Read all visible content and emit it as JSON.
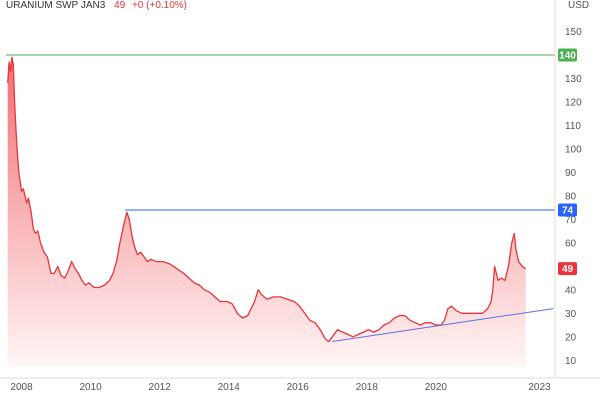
{
  "header": {
    "symbol": "URANIUM SWP JAN3",
    "last": "49",
    "change": "+0 (+0.10%)"
  },
  "colors": {
    "price_line": "#e8343a",
    "area_top": "#f26d73",
    "area_bottom": "#fff5f5",
    "resistance_high": "#4caf50",
    "resistance_mid": "#2962ff",
    "trendline": "#5b6ee8",
    "axis_bg": "#ffffff"
  },
  "chart_data": {
    "type": "area",
    "title": "URANIUM SWP JAN3",
    "xlabel": "",
    "ylabel": "",
    "currency": "USD",
    "xlim": [
      2007.55,
      2023.45
    ],
    "ylim": [
      5,
      160
    ],
    "x_ticks": [
      {
        "value": 2008,
        "label": "2008"
      },
      {
        "value": 2010,
        "label": "2010"
      },
      {
        "value": 2012,
        "label": "2012"
      },
      {
        "value": 2014,
        "label": "2014"
      },
      {
        "value": 2016,
        "label": "2016"
      },
      {
        "value": 2018,
        "label": "2018"
      },
      {
        "value": 2020,
        "label": "2020"
      },
      {
        "value": 2023,
        "label": "2023"
      }
    ],
    "y_ticks": [
      10,
      20,
      30,
      40,
      50,
      60,
      70,
      80,
      90,
      100,
      110,
      120,
      130,
      150
    ],
    "grid": false,
    "series": [
      {
        "points": [
          [
            2007.6,
            128
          ],
          [
            2007.64,
            137
          ],
          [
            2007.68,
            133
          ],
          [
            2007.72,
            139
          ],
          [
            2007.76,
            136
          ],
          [
            2007.8,
            120
          ],
          [
            2007.84,
            108
          ],
          [
            2007.88,
            98
          ],
          [
            2007.92,
            90
          ],
          [
            2007.96,
            86
          ],
          [
            2008.0,
            82
          ],
          [
            2008.05,
            83
          ],
          [
            2008.1,
            80
          ],
          [
            2008.15,
            77
          ],
          [
            2008.2,
            79
          ],
          [
            2008.28,
            73
          ],
          [
            2008.34,
            66
          ],
          [
            2008.4,
            64
          ],
          [
            2008.47,
            65
          ],
          [
            2008.55,
            60
          ],
          [
            2008.65,
            56
          ],
          [
            2008.75,
            54
          ],
          [
            2008.85,
            47
          ],
          [
            2008.95,
            47
          ],
          [
            2009.05,
            50
          ],
          [
            2009.15,
            46
          ],
          [
            2009.25,
            45
          ],
          [
            2009.35,
            48
          ],
          [
            2009.45,
            52
          ],
          [
            2009.55,
            49
          ],
          [
            2009.65,
            47
          ],
          [
            2009.75,
            44
          ],
          [
            2009.85,
            42
          ],
          [
            2009.95,
            43
          ],
          [
            2010.1,
            41
          ],
          [
            2010.25,
            41
          ],
          [
            2010.4,
            42
          ],
          [
            2010.55,
            44
          ],
          [
            2010.65,
            47
          ],
          [
            2010.75,
            52
          ],
          [
            2010.85,
            60
          ],
          [
            2010.95,
            67
          ],
          [
            2011.05,
            73
          ],
          [
            2011.12,
            70
          ],
          [
            2011.2,
            63
          ],
          [
            2011.28,
            58
          ],
          [
            2011.36,
            55
          ],
          [
            2011.45,
            56
          ],
          [
            2011.55,
            54
          ],
          [
            2011.65,
            52
          ],
          [
            2011.75,
            53
          ],
          [
            2011.9,
            52
          ],
          [
            2012.1,
            52
          ],
          [
            2012.3,
            51
          ],
          [
            2012.5,
            49
          ],
          [
            2012.7,
            47
          ],
          [
            2012.85,
            45
          ],
          [
            2013.0,
            43
          ],
          [
            2013.15,
            42
          ],
          [
            2013.3,
            40
          ],
          [
            2013.45,
            39
          ],
          [
            2013.6,
            37
          ],
          [
            2013.75,
            35
          ],
          [
            2013.95,
            35
          ],
          [
            2014.1,
            34
          ],
          [
            2014.25,
            30
          ],
          [
            2014.4,
            28
          ],
          [
            2014.55,
            29
          ],
          [
            2014.65,
            32
          ],
          [
            2014.75,
            35
          ],
          [
            2014.85,
            40
          ],
          [
            2014.95,
            38
          ],
          [
            2015.1,
            36
          ],
          [
            2015.3,
            37
          ],
          [
            2015.5,
            37
          ],
          [
            2015.7,
            36
          ],
          [
            2015.9,
            35
          ],
          [
            2016.05,
            33
          ],
          [
            2016.2,
            30
          ],
          [
            2016.35,
            27
          ],
          [
            2016.5,
            26
          ],
          [
            2016.65,
            23
          ],
          [
            2016.8,
            19
          ],
          [
            2016.9,
            18
          ],
          [
            2017.0,
            20
          ],
          [
            2017.15,
            23
          ],
          [
            2017.3,
            22
          ],
          [
            2017.45,
            21
          ],
          [
            2017.6,
            20
          ],
          [
            2017.75,
            21
          ],
          [
            2017.9,
            22
          ],
          [
            2018.05,
            23
          ],
          [
            2018.2,
            22
          ],
          [
            2018.35,
            23
          ],
          [
            2018.5,
            25
          ],
          [
            2018.65,
            26
          ],
          [
            2018.8,
            28
          ],
          [
            2018.95,
            29
          ],
          [
            2019.1,
            29
          ],
          [
            2019.25,
            27
          ],
          [
            2019.4,
            26
          ],
          [
            2019.55,
            25
          ],
          [
            2019.7,
            26
          ],
          [
            2019.85,
            26
          ],
          [
            2020.0,
            25
          ],
          [
            2020.15,
            25
          ],
          [
            2020.25,
            27
          ],
          [
            2020.35,
            32
          ],
          [
            2020.45,
            33
          ],
          [
            2020.6,
            31
          ],
          [
            2020.75,
            30
          ],
          [
            2020.9,
            30
          ],
          [
            2021.05,
            30
          ],
          [
            2021.2,
            30
          ],
          [
            2021.35,
            30
          ],
          [
            2021.5,
            32
          ],
          [
            2021.6,
            35
          ],
          [
            2021.65,
            40
          ],
          [
            2021.7,
            50
          ],
          [
            2021.75,
            47
          ],
          [
            2021.8,
            44
          ],
          [
            2021.9,
            45
          ],
          [
            2022.0,
            44
          ],
          [
            2022.1,
            50
          ],
          [
            2022.2,
            60
          ],
          [
            2022.27,
            64
          ],
          [
            2022.32,
            57
          ],
          [
            2022.4,
            52
          ],
          [
            2022.5,
            50
          ],
          [
            2022.6,
            49
          ]
        ]
      }
    ],
    "horizontal_levels": [
      {
        "value": 140,
        "label": "140",
        "color": "#4caf50",
        "x_start": 2007.55,
        "x_end": 2023.45
      },
      {
        "value": 74,
        "label": "74",
        "color": "#2962ff",
        "x_start": 2011.0,
        "x_end": 2023.45
      }
    ],
    "last_price_label": {
      "value": 49,
      "label": "49",
      "color": "#e8343a"
    },
    "trendline": {
      "x1": 2017.0,
      "y1": 18,
      "x2": 2023.4,
      "y2": 32,
      "color": "#5b6ee8"
    }
  }
}
